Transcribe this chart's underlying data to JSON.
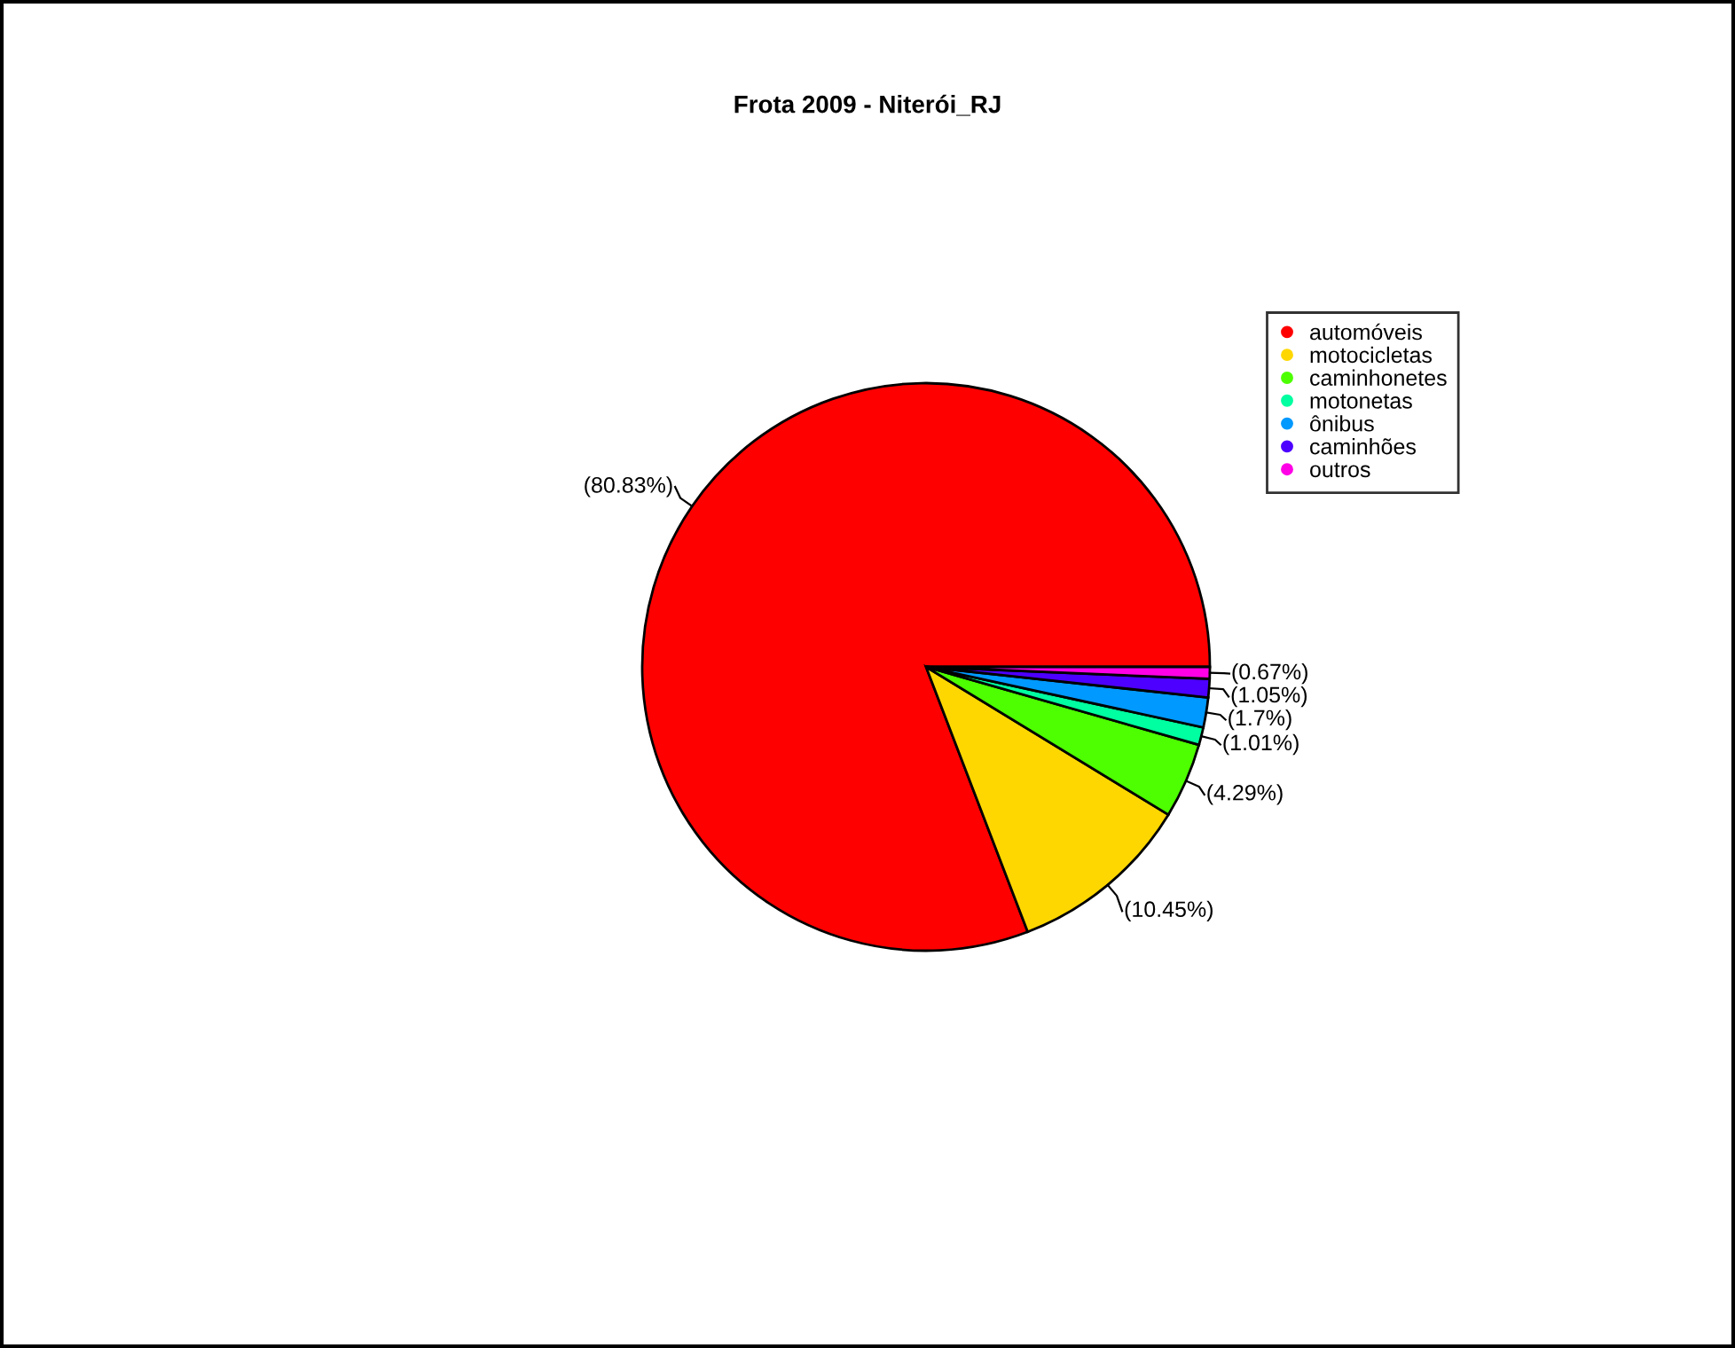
{
  "chart_data": {
    "type": "pie",
    "title": "Frota 2009 - Niterói_RJ",
    "categories": [
      "automóveis",
      "motocicletas",
      "caminhonetes",
      "motonetas",
      "ônibus",
      "caminhões",
      "outros"
    ],
    "values": [
      80.83,
      10.45,
      4.29,
      1.01,
      1.7,
      1.05,
      0.67
    ],
    "colors": [
      "#ff0000",
      "#ffd700",
      "#4dff00",
      "#00ffa0",
      "#0099ff",
      "#4d00ff",
      "#ff00e6"
    ],
    "value_labels": [
      "(80.83%)",
      "(10.45%)",
      "(4.29%)",
      "(1.01%)",
      "(1.7%)",
      "(1.05%)",
      "(0.67%)"
    ],
    "legend": "top right",
    "marker": "circle"
  }
}
